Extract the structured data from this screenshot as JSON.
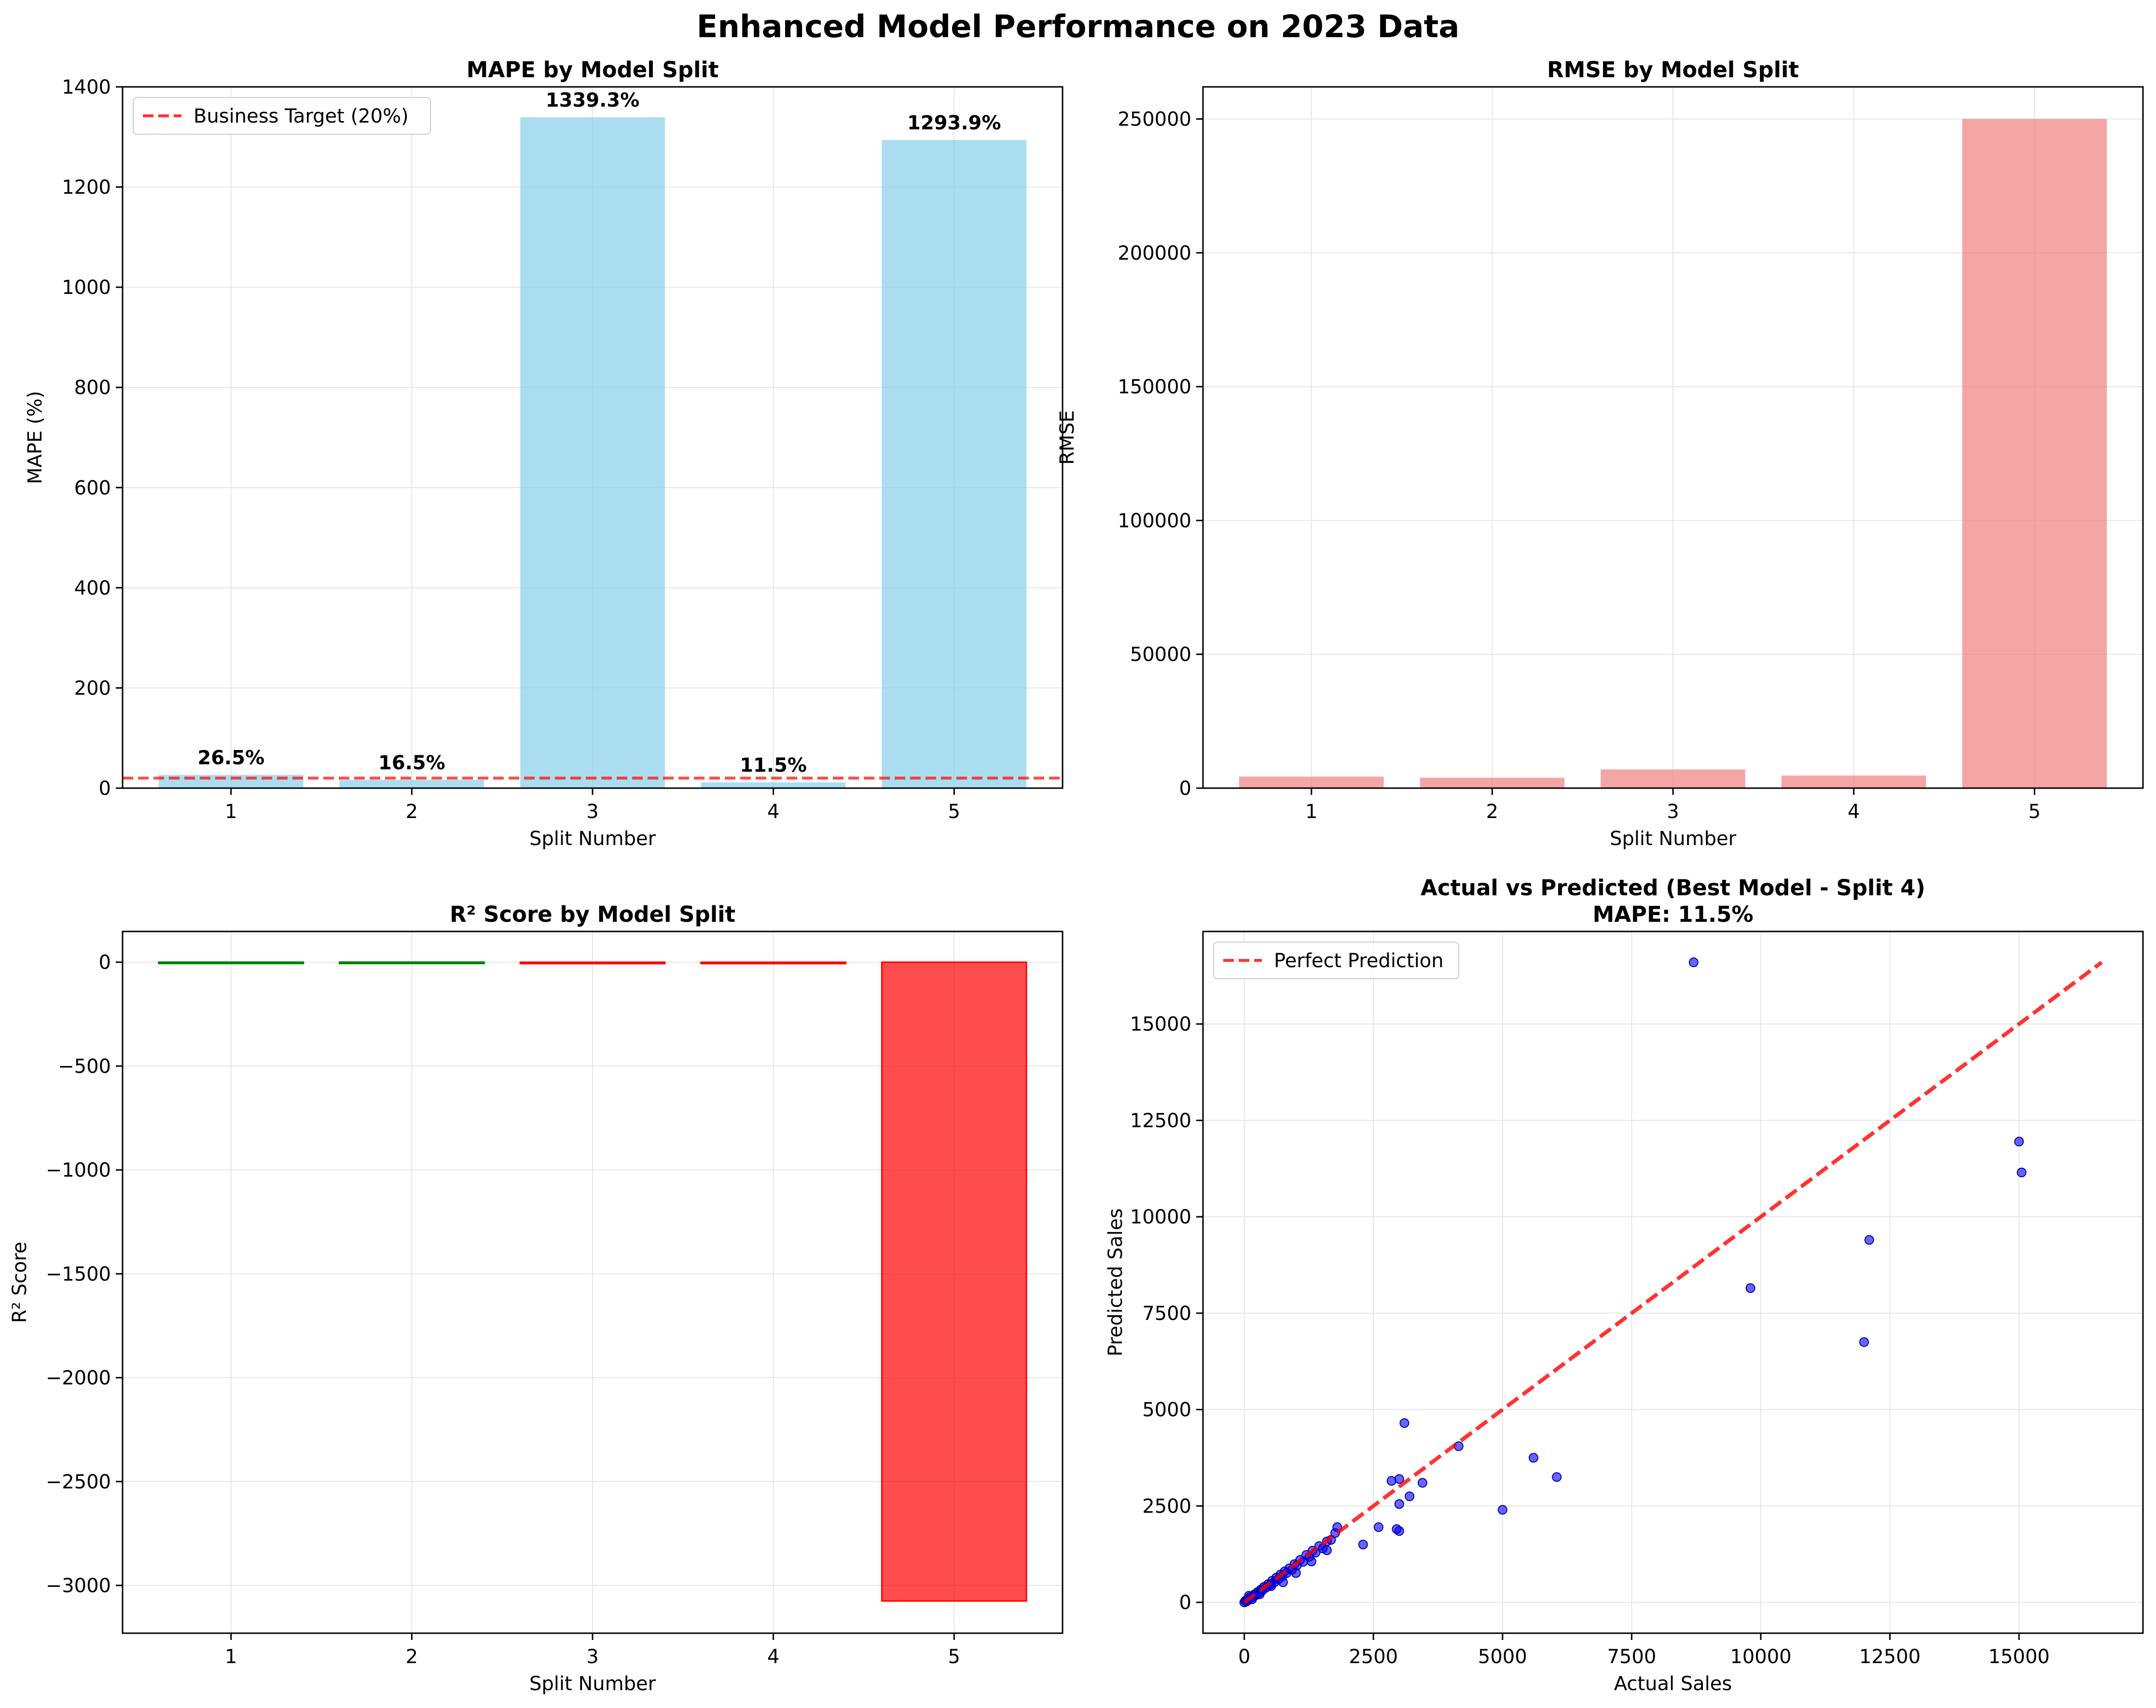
{
  "figure": {
    "title": "Enhanced Model Performance on 2023 Data"
  },
  "chart_data": [
    {
      "type": "bar",
      "title": "MAPE by Model Split",
      "xlabel": "Split Number",
      "ylabel": "MAPE (%)",
      "categories": [
        "1",
        "2",
        "3",
        "4",
        "5"
      ],
      "values": [
        26.5,
        16.5,
        1339.3,
        11.5,
        1293.9
      ],
      "data_labels": [
        "26.5%",
        "16.5%",
        "1339.3%",
        "11.5%",
        "1293.9%"
      ],
      "ylim": [
        0,
        1400
      ],
      "yticks": [
        0,
        200,
        400,
        600,
        800,
        1000,
        1200,
        1400
      ],
      "bar_color": "#87ceeb",
      "reference_line": {
        "value": 20,
        "label": "Business Target (20%)",
        "color": "#ff0000"
      },
      "legend": "top-left",
      "grid": true
    },
    {
      "type": "bar",
      "title": "RMSE by Model Split",
      "xlabel": "Split Number",
      "ylabel": "RMSE",
      "categories": [
        "1",
        "2",
        "3",
        "4",
        "5"
      ],
      "values": [
        4300,
        3900,
        7000,
        4700,
        250000
      ],
      "ylim": [
        0,
        262000
      ],
      "yticks": [
        0,
        50000,
        100000,
        150000,
        200000,
        250000
      ],
      "bar_color": "#f08080",
      "grid": true
    },
    {
      "type": "bar",
      "title": "R² Score by Model Split",
      "xlabel": "Split Number",
      "ylabel": "R² Score",
      "categories": [
        "1",
        "2",
        "3",
        "4",
        "5"
      ],
      "values": [
        0.5,
        0.6,
        -6.0,
        -2.5,
        -3075
      ],
      "ylim": [
        -3230,
        148
      ],
      "yticks": [
        0,
        -500,
        -1000,
        -1500,
        -2000,
        -2500,
        -3000
      ],
      "ytick_labels": [
        "0",
        "−500",
        "−1000",
        "−1500",
        "−2000",
        "−2500",
        "−3000"
      ],
      "positive_color": "#008000",
      "negative_color": "#ff0000",
      "grid": true
    },
    {
      "type": "scatter",
      "title": "Actual vs Predicted (Best Model - Split 4)",
      "subtitle": "MAPE: 11.5%",
      "xlabel": "Actual Sales",
      "ylabel": "Predicted Sales",
      "xlim": [
        -800,
        17400
      ],
      "ylim": [
        -800,
        17400
      ],
      "xticks": [
        0,
        2500,
        5000,
        7500,
        10000,
        12500,
        15000
      ],
      "yticks": [
        0,
        2500,
        5000,
        7500,
        10000,
        12500,
        15000
      ],
      "point_color": "#0000ff",
      "reference_line": {
        "from": [
          0,
          0
        ],
        "to": [
          16600,
          16600
        ],
        "label": "Perfect Prediction",
        "color": "#ff0000"
      },
      "legend": "top-left",
      "grid": true,
      "points": [
        [
          0,
          0
        ],
        [
          20,
          40
        ],
        [
          40,
          20
        ],
        [
          60,
          80
        ],
        [
          80,
          60
        ],
        [
          100,
          120
        ],
        [
          120,
          100
        ],
        [
          150,
          160
        ],
        [
          180,
          150
        ],
        [
          200,
          210
        ],
        [
          230,
          190
        ],
        [
          260,
          270
        ],
        [
          290,
          250
        ],
        [
          320,
          330
        ],
        [
          350,
          310
        ],
        [
          380,
          400
        ],
        [
          420,
          380
        ],
        [
          460,
          470
        ],
        [
          500,
          450
        ],
        [
          540,
          560
        ],
        [
          580,
          520
        ],
        [
          620,
          640
        ],
        [
          660,
          600
        ],
        [
          700,
          720
        ],
        [
          740,
          680
        ],
        [
          780,
          800
        ],
        [
          820,
          760
        ],
        [
          870,
          880
        ],
        [
          920,
          840
        ],
        [
          970,
          990
        ],
        [
          1020,
          960
        ],
        [
          1080,
          1100
        ],
        [
          1140,
          1050
        ],
        [
          1200,
          1230
        ],
        [
          1260,
          1180
        ],
        [
          1320,
          1340
        ],
        [
          1380,
          1290
        ],
        [
          1450,
          1460
        ],
        [
          1520,
          1400
        ],
        [
          1600,
          1580
        ],
        [
          1680,
          1620
        ],
        [
          1760,
          1800
        ],
        [
          150,
          80
        ],
        [
          90,
          170
        ],
        [
          300,
          210
        ],
        [
          520,
          420
        ],
        [
          750,
          520
        ],
        [
          1000,
          760
        ],
        [
          1300,
          1060
        ],
        [
          1600,
          1350
        ],
        [
          1800,
          1950
        ],
        [
          2300,
          1500
        ],
        [
          2600,
          1950
        ],
        [
          2850,
          3150
        ],
        [
          3000,
          3200
        ],
        [
          3000,
          1850
        ],
        [
          2950,
          1900
        ],
        [
          3000,
          2550
        ],
        [
          3200,
          2750
        ],
        [
          3450,
          3100
        ],
        [
          3100,
          4650
        ],
        [
          4150,
          4050
        ],
        [
          5000,
          2400
        ],
        [
          5600,
          3750
        ],
        [
          6050,
          3250
        ],
        [
          8700,
          16600
        ],
        [
          9800,
          8150
        ],
        [
          12000,
          6750
        ],
        [
          12100,
          9400
        ],
        [
          15000,
          11950
        ],
        [
          15050,
          11150
        ]
      ]
    }
  ]
}
